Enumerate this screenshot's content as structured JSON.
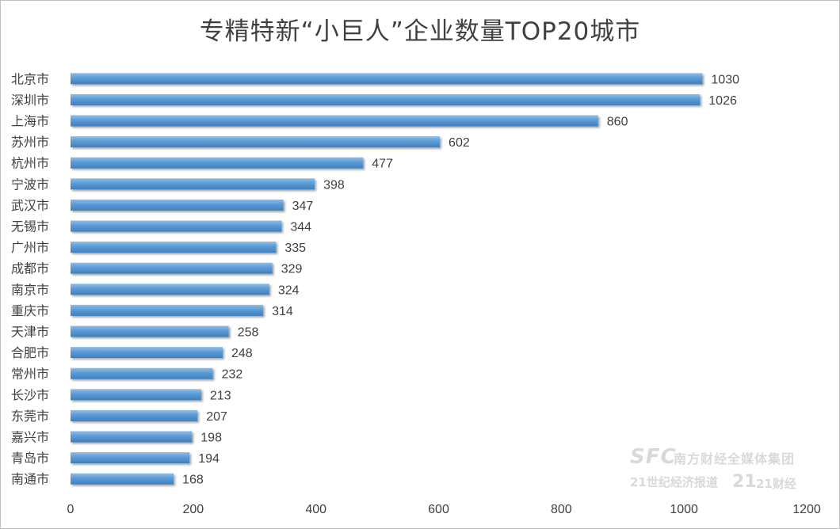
{
  "chart_data": {
    "type": "bar",
    "orientation": "horizontal",
    "title": "专精特新“小巨人”企业数量TOP20城市",
    "categories": [
      "北京市",
      "深圳市",
      "上海市",
      "苏州市",
      "杭州市",
      "宁波市",
      "武汉市",
      "无锡市",
      "广州市",
      "成都市",
      "南京市",
      "重庆市",
      "天津市",
      "合肥市",
      "常州市",
      "长沙市",
      "东莞市",
      "嘉兴市",
      "青岛市",
      "南通市"
    ],
    "values": [
      1030,
      1026,
      860,
      602,
      477,
      398,
      347,
      344,
      335,
      329,
      324,
      314,
      258,
      248,
      232,
      213,
      207,
      198,
      194,
      168
    ],
    "xlim": [
      0,
      1200
    ],
    "xticks": [
      0,
      200,
      400,
      600,
      800,
      1000,
      1200
    ],
    "grid": false,
    "legend": "none",
    "bar_color": "#5b9bd5"
  },
  "watermark": {
    "brand": "SFC",
    "group": "南方财经全媒体集团",
    "paper": "21世纪经济报道",
    "logo": "21",
    "app": "21财经"
  }
}
